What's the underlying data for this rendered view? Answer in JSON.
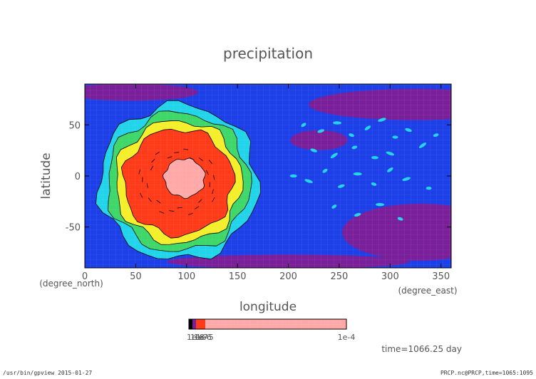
{
  "chart_data": {
    "type": "heatmap",
    "title": "precipitation",
    "xlabel": "longitude",
    "ylabel": "latitude",
    "x_units": "(degree_east)",
    "y_units": "(degree_north)",
    "xlim": [
      0,
      360
    ],
    "ylim": [
      -90,
      90
    ],
    "x_ticks": [
      0,
      50,
      100,
      150,
      200,
      250,
      300,
      350
    ],
    "y_ticks": [
      -50,
      0,
      50
    ],
    "grid": false,
    "colorbar": {
      "min_label": "1e-8",
      "max_label": "1e-4",
      "overlap_labels": [
        "1e-7",
        "1e-6",
        "1e-5"
      ]
    },
    "levels": [
      {
        "color": "#7a1f9a"
      },
      {
        "color": "#1c3fe8"
      },
      {
        "color": "#22d4ea"
      },
      {
        "color": "#3fd66a"
      },
      {
        "color": "#f4ef2a"
      },
      {
        "color": "#ff3b1a"
      },
      {
        "color": "#ffaaa8"
      }
    ],
    "features": [
      {
        "shape": "blob",
        "center": [
          92,
          -6
        ],
        "radius": [
          78,
          76
        ],
        "level": 2
      },
      {
        "shape": "blob",
        "center": [
          92,
          -6
        ],
        "radius": [
          70,
          68
        ],
        "level": 3
      },
      {
        "shape": "blob",
        "center": [
          92,
          -6
        ],
        "radius": [
          62,
          60
        ],
        "level": 4
      },
      {
        "shape": "blob",
        "center": [
          92,
          -6
        ],
        "radius": [
          54,
          52
        ],
        "level": 5
      },
      {
        "shape": "blob",
        "center": [
          98,
          -2
        ],
        "radius": [
          20,
          19
        ],
        "level": 6
      }
    ],
    "time_label": "time=1066.25 day"
  },
  "footer": {
    "left": "/usr/bin/gpview  2015-01-27",
    "right": "PRCP.nc@PRCP,time=1065:1095"
  }
}
